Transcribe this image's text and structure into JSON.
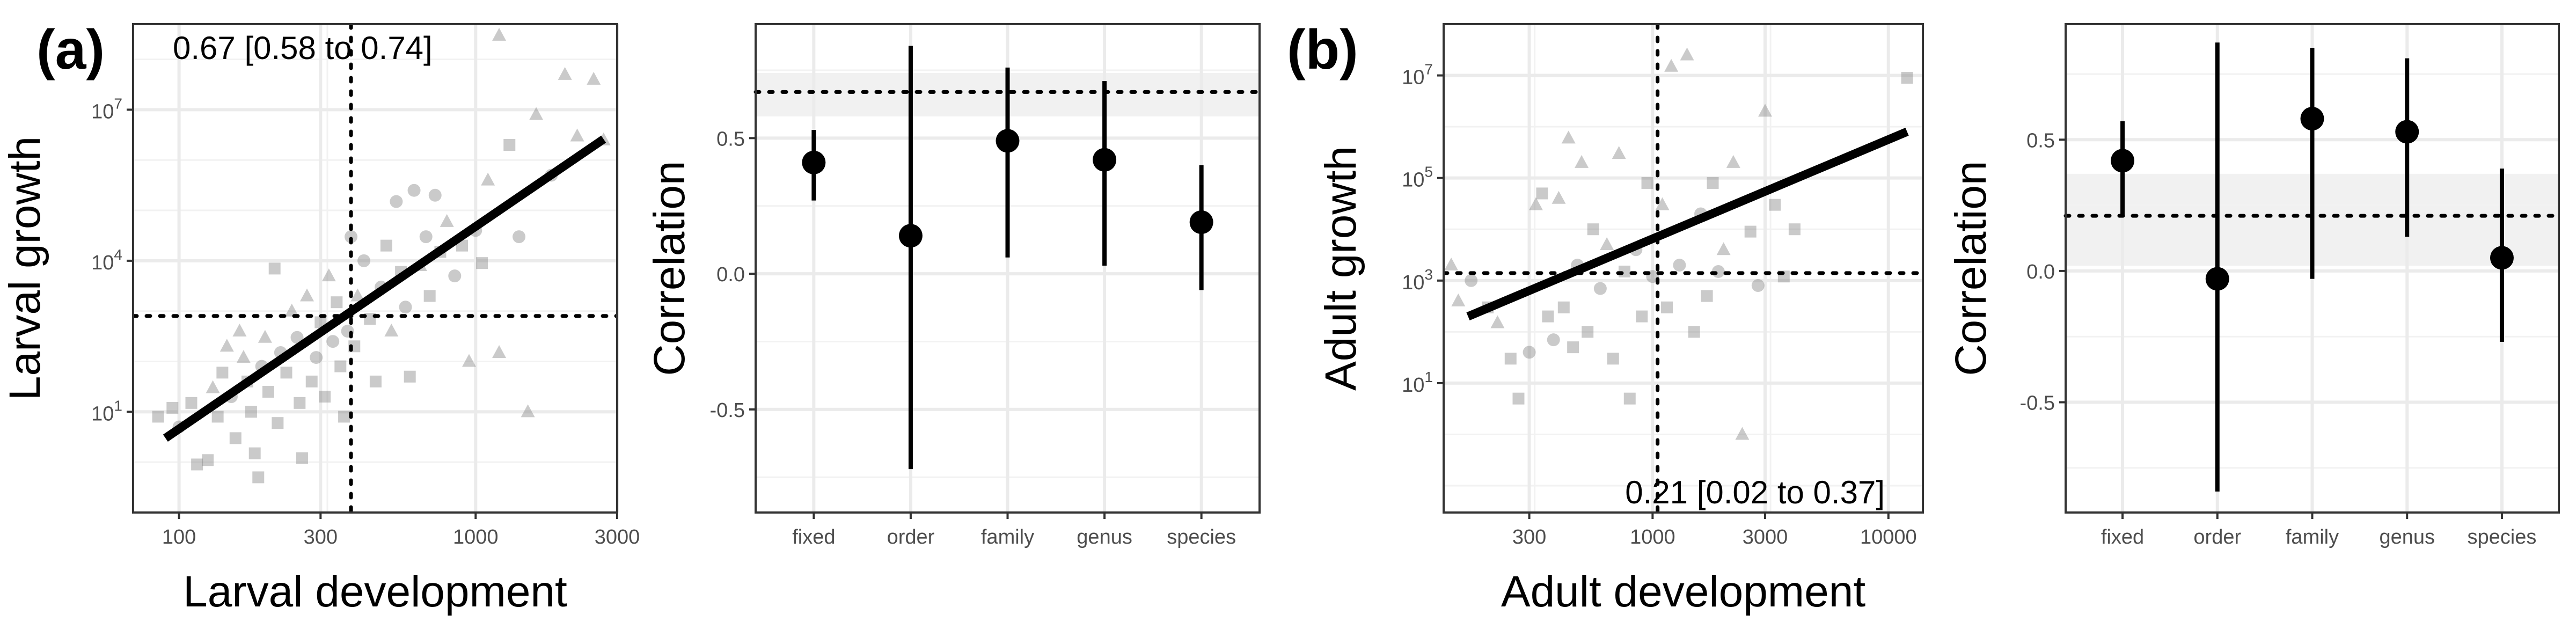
{
  "figure": {
    "panel_labels": [
      "(a)",
      "(b)"
    ]
  },
  "chart_data": [
    {
      "type": "scatter",
      "panel": "a",
      "xlabel": "Larval development",
      "ylabel": "Larval growth",
      "x_scale": "log10",
      "y_scale": "log10",
      "xlim": [
        70,
        3000
      ],
      "ylim": [
        0.1,
        500000000
      ],
      "x_ticks": [
        100,
        300,
        1000,
        3000
      ],
      "x_tick_labels": [
        "100",
        "300",
        "1000",
        "3000"
      ],
      "y_ticks": [
        10,
        10000,
        10000000
      ],
      "y_tick_labels": [
        "10",
        "10",
        "10"
      ],
      "y_tick_exponents": [
        "1",
        "4",
        "7"
      ],
      "grid": true,
      "annotation": "0.67 [0.58 to 0.74]",
      "vline_x": 380,
      "hline_y": 800,
      "regression_line": {
        "x": [
          90,
          2700
        ],
        "y": [
          3,
          2600000
        ]
      },
      "point_marker_shapes": [
        "circle",
        "triangle",
        "square"
      ],
      "points": [
        {
          "x": 85,
          "y": 8,
          "m": "square"
        },
        {
          "x": 95,
          "y": 12,
          "m": "square"
        },
        {
          "x": 100,
          "y": 5,
          "m": "circle"
        },
        {
          "x": 110,
          "y": 15,
          "m": "square"
        },
        {
          "x": 115,
          "y": 0.9,
          "m": "square"
        },
        {
          "x": 125,
          "y": 1.1,
          "m": "square"
        },
        {
          "x": 130,
          "y": 30,
          "m": "triangle"
        },
        {
          "x": 135,
          "y": 8,
          "m": "square"
        },
        {
          "x": 140,
          "y": 60,
          "m": "square"
        },
        {
          "x": 145,
          "y": 200,
          "m": "triangle"
        },
        {
          "x": 150,
          "y": 20,
          "m": "circle"
        },
        {
          "x": 155,
          "y": 3,
          "m": "square"
        },
        {
          "x": 160,
          "y": 400,
          "m": "triangle"
        },
        {
          "x": 165,
          "y": 120,
          "m": "triangle"
        },
        {
          "x": 170,
          "y": 40,
          "m": "square"
        },
        {
          "x": 175,
          "y": 10,
          "m": "square"
        },
        {
          "x": 180,
          "y": 1.5,
          "m": "square"
        },
        {
          "x": 185,
          "y": 0.5,
          "m": "square"
        },
        {
          "x": 190,
          "y": 80,
          "m": "circle"
        },
        {
          "x": 195,
          "y": 300,
          "m": "triangle"
        },
        {
          "x": 200,
          "y": 25,
          "m": "square"
        },
        {
          "x": 210,
          "y": 7000,
          "m": "square"
        },
        {
          "x": 215,
          "y": 6,
          "m": "square"
        },
        {
          "x": 220,
          "y": 150,
          "m": "circle"
        },
        {
          "x": 230,
          "y": 60,
          "m": "square"
        },
        {
          "x": 240,
          "y": 1000,
          "m": "triangle"
        },
        {
          "x": 250,
          "y": 300,
          "m": "circle"
        },
        {
          "x": 255,
          "y": 15,
          "m": "square"
        },
        {
          "x": 260,
          "y": 1.2,
          "m": "square"
        },
        {
          "x": 270,
          "y": 2000,
          "m": "triangle"
        },
        {
          "x": 280,
          "y": 40,
          "m": "square"
        },
        {
          "x": 290,
          "y": 120,
          "m": "circle"
        },
        {
          "x": 300,
          "y": 600,
          "m": "square"
        },
        {
          "x": 310,
          "y": 20,
          "m": "square"
        },
        {
          "x": 320,
          "y": 5000,
          "m": "triangle"
        },
        {
          "x": 330,
          "y": 250,
          "m": "circle"
        },
        {
          "x": 340,
          "y": 1500,
          "m": "square"
        },
        {
          "x": 350,
          "y": 80,
          "m": "square"
        },
        {
          "x": 360,
          "y": 8,
          "m": "square"
        },
        {
          "x": 370,
          "y": 400,
          "m": "circle"
        },
        {
          "x": 380,
          "y": 30000,
          "m": "circle"
        },
        {
          "x": 390,
          "y": 200,
          "m": "square"
        },
        {
          "x": 400,
          "y": 2000,
          "m": "triangle"
        },
        {
          "x": 420,
          "y": 10000,
          "m": "circle"
        },
        {
          "x": 440,
          "y": 700,
          "m": "square"
        },
        {
          "x": 460,
          "y": 40,
          "m": "square"
        },
        {
          "x": 480,
          "y": 3000,
          "m": "circle"
        },
        {
          "x": 500,
          "y": 20000,
          "m": "square"
        },
        {
          "x": 520,
          "y": 400,
          "m": "triangle"
        },
        {
          "x": 540,
          "y": 150000,
          "m": "circle"
        },
        {
          "x": 560,
          "y": 6000,
          "m": "square"
        },
        {
          "x": 580,
          "y": 1200,
          "m": "circle"
        },
        {
          "x": 600,
          "y": 50,
          "m": "square"
        },
        {
          "x": 620,
          "y": 250000,
          "m": "circle"
        },
        {
          "x": 650,
          "y": 8000,
          "m": "triangle"
        },
        {
          "x": 680,
          "y": 30000,
          "m": "circle"
        },
        {
          "x": 700,
          "y": 2000,
          "m": "square"
        },
        {
          "x": 730,
          "y": 200000,
          "m": "circle"
        },
        {
          "x": 760,
          "y": 15000,
          "m": "square"
        },
        {
          "x": 800,
          "y": 60000,
          "m": "triangle"
        },
        {
          "x": 850,
          "y": 5000,
          "m": "circle"
        },
        {
          "x": 900,
          "y": 20000,
          "m": "square"
        },
        {
          "x": 950,
          "y": 100,
          "m": "triangle"
        },
        {
          "x": 1000,
          "y": 40000,
          "m": "circle"
        },
        {
          "x": 1050,
          "y": 9000,
          "m": "square"
        },
        {
          "x": 1100,
          "y": 400000,
          "m": "triangle"
        },
        {
          "x": 1200,
          "y": 150,
          "m": "triangle"
        },
        {
          "x": 1300,
          "y": 2000000,
          "m": "square"
        },
        {
          "x": 1400,
          "y": 30000,
          "m": "circle"
        },
        {
          "x": 1500,
          "y": 10,
          "m": "triangle"
        },
        {
          "x": 1600,
          "y": 8000000,
          "m": "triangle"
        },
        {
          "x": 1800,
          "y": 500000,
          "m": "circle"
        },
        {
          "x": 2000,
          "y": 50000000,
          "m": "triangle"
        },
        {
          "x": 2200,
          "y": 3000000,
          "m": "triangle"
        },
        {
          "x": 2500,
          "y": 40000000,
          "m": "triangle"
        },
        {
          "x": 2700,
          "y": 2500000,
          "m": "triangle"
        },
        {
          "x": 1200,
          "y": 300000000,
          "m": "triangle"
        }
      ]
    },
    {
      "type": "scatter",
      "panel": "a",
      "ylabel": "Correlation",
      "categories": [
        "fixed",
        "order",
        "family",
        "genus",
        "species"
      ],
      "values": [
        0.41,
        0.14,
        0.49,
        0.42,
        0.19
      ],
      "ci_low": [
        0.27,
        -0.72,
        0.06,
        0.03,
        -0.06
      ],
      "ci_high": [
        0.53,
        0.84,
        0.76,
        0.71,
        0.4
      ],
      "reference": 0.67,
      "reference_ci": [
        0.58,
        0.74
      ],
      "ylim": [
        -0.88,
        0.92
      ],
      "y_ticks": [
        0.5,
        0.0,
        -0.5
      ],
      "y_tick_labels": [
        "0.5",
        "0.0",
        "-0.5"
      ],
      "grid": true
    },
    {
      "type": "scatter",
      "panel": "b",
      "xlabel": "Adult development",
      "ylabel": "Adult growth",
      "x_scale": "log10",
      "y_scale": "log10",
      "xlim": [
        130,
        14000
      ],
      "ylim": [
        0.03,
        100000000
      ],
      "x_ticks": [
        300,
        1000,
        3000,
        10000
      ],
      "x_tick_labels": [
        "300",
        "1000",
        "3000",
        "10000"
      ],
      "y_ticks": [
        10,
        1000,
        100000,
        10000000
      ],
      "y_tick_labels": [
        "10",
        "10",
        "10",
        "10"
      ],
      "y_tick_exponents": [
        "1",
        "3",
        "5",
        "7"
      ],
      "grid": true,
      "annotation": "0.21 [0.02 to 0.37]",
      "vline_x": 1050,
      "hline_y": 1400,
      "regression_line": {
        "x": [
          165,
          12000
        ],
        "y": [
          200,
          800000
        ]
      },
      "point_marker_shapes": [
        "circle",
        "triangle",
        "square"
      ],
      "points": [
        {
          "x": 140,
          "y": 2000,
          "m": "triangle"
        },
        {
          "x": 150,
          "y": 400,
          "m": "triangle"
        },
        {
          "x": 170,
          "y": 1000,
          "m": "circle"
        },
        {
          "x": 200,
          "y": 300,
          "m": "square"
        },
        {
          "x": 220,
          "y": 150,
          "m": "triangle"
        },
        {
          "x": 250,
          "y": 30,
          "m": "square"
        },
        {
          "x": 270,
          "y": 5,
          "m": "square"
        },
        {
          "x": 300,
          "y": 40,
          "m": "circle"
        },
        {
          "x": 320,
          "y": 30000,
          "m": "triangle"
        },
        {
          "x": 340,
          "y": 50000,
          "m": "square"
        },
        {
          "x": 360,
          "y": 200,
          "m": "square"
        },
        {
          "x": 380,
          "y": 70,
          "m": "circle"
        },
        {
          "x": 400,
          "y": 40000,
          "m": "triangle"
        },
        {
          "x": 420,
          "y": 300,
          "m": "square"
        },
        {
          "x": 440,
          "y": 600000,
          "m": "triangle"
        },
        {
          "x": 460,
          "y": 50,
          "m": "square"
        },
        {
          "x": 480,
          "y": 2000,
          "m": "circle"
        },
        {
          "x": 500,
          "y": 200000,
          "m": "triangle"
        },
        {
          "x": 530,
          "y": 100,
          "m": "square"
        },
        {
          "x": 560,
          "y": 10000,
          "m": "square"
        },
        {
          "x": 600,
          "y": 700,
          "m": "circle"
        },
        {
          "x": 640,
          "y": 5000,
          "m": "triangle"
        },
        {
          "x": 680,
          "y": 30,
          "m": "square"
        },
        {
          "x": 720,
          "y": 300000,
          "m": "triangle"
        },
        {
          "x": 760,
          "y": 1500,
          "m": "square"
        },
        {
          "x": 800,
          "y": 5,
          "m": "square"
        },
        {
          "x": 850,
          "y": 4000,
          "m": "circle"
        },
        {
          "x": 900,
          "y": 200,
          "m": "square"
        },
        {
          "x": 950,
          "y": 80000,
          "m": "square"
        },
        {
          "x": 1000,
          "y": 1200,
          "m": "circle"
        },
        {
          "x": 1100,
          "y": 30000,
          "m": "triangle"
        },
        {
          "x": 1150,
          "y": 300,
          "m": "square"
        },
        {
          "x": 1200,
          "y": 15000000,
          "m": "triangle"
        },
        {
          "x": 1300,
          "y": 2000,
          "m": "circle"
        },
        {
          "x": 1400,
          "y": 25000000,
          "m": "triangle"
        },
        {
          "x": 1500,
          "y": 100,
          "m": "square"
        },
        {
          "x": 1600,
          "y": 20000,
          "m": "circle"
        },
        {
          "x": 1700,
          "y": 500,
          "m": "square"
        },
        {
          "x": 1800,
          "y": 80000,
          "m": "square"
        },
        {
          "x": 1900,
          "y": 1500,
          "m": "circle"
        },
        {
          "x": 2000,
          "y": 4000,
          "m": "triangle"
        },
        {
          "x": 2200,
          "y": 200000,
          "m": "triangle"
        },
        {
          "x": 2400,
          "y": 1,
          "m": "triangle"
        },
        {
          "x": 2600,
          "y": 9000,
          "m": "square"
        },
        {
          "x": 2800,
          "y": 800,
          "m": "circle"
        },
        {
          "x": 3000,
          "y": 2000000,
          "m": "triangle"
        },
        {
          "x": 3300,
          "y": 30000,
          "m": "square"
        },
        {
          "x": 3600,
          "y": 1200,
          "m": "square"
        },
        {
          "x": 4000,
          "y": 10000,
          "m": "square"
        },
        {
          "x": 12000,
          "y": 9000000,
          "m": "square"
        }
      ]
    },
    {
      "type": "scatter",
      "panel": "b",
      "ylabel": "Correlation",
      "categories": [
        "fixed",
        "order",
        "family",
        "genus",
        "species"
      ],
      "values": [
        0.42,
        -0.03,
        0.58,
        0.53,
        0.05
      ],
      "ci_low": [
        0.21,
        -0.84,
        -0.03,
        0.13,
        -0.27
      ],
      "ci_high": [
        0.57,
        0.87,
        0.85,
        0.81,
        0.39
      ],
      "reference": 0.21,
      "reference_ci": [
        0.02,
        0.37
      ],
      "ylim": [
        -0.92,
        0.94
      ],
      "y_ticks": [
        0.5,
        0.0,
        -0.5
      ],
      "y_tick_labels": [
        "0.5",
        "0.0",
        "-0.5"
      ],
      "grid": true
    }
  ]
}
